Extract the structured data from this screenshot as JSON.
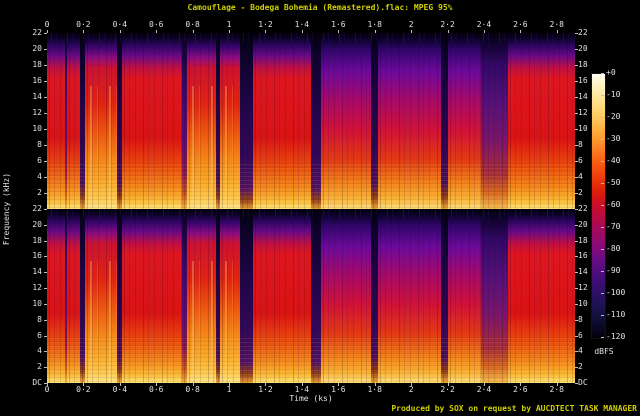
{
  "header": {
    "title": "Camouflage - Bodega Bohemia (Remastered).flac: MPEG 95%",
    "title_color": "#d0d000"
  },
  "footer": {
    "credit": "Produced by SOX on request by AUCDTECT TASK MANAGER",
    "credit_color": "#d0d000"
  },
  "chart_data": {
    "type": "heatmap",
    "subtype": "audio-spectrogram",
    "title": "Camouflage - Bodega Bohemia (Remastered).flac: MPEG 95%",
    "xlabel": "Time (ks)",
    "ylabel": "Frequency (kHz)",
    "channels": [
      "left",
      "right"
    ],
    "x_range_ks": [
      0,
      2.9
    ],
    "y_range_khz": [
      0,
      22
    ],
    "grid": false,
    "legend_position": "right-colorbar",
    "x_ticks": [
      {
        "v": 0.0,
        "label": "0"
      },
      {
        "v": 0.2,
        "label": "0·2"
      },
      {
        "v": 0.4,
        "label": "0·4"
      },
      {
        "v": 0.6,
        "label": "0·6"
      },
      {
        "v": 0.8,
        "label": "0·8"
      },
      {
        "v": 1.0,
        "label": "1"
      },
      {
        "v": 1.2,
        "label": "1·2"
      },
      {
        "v": 1.4,
        "label": "1·4"
      },
      {
        "v": 1.6,
        "label": "1·6"
      },
      {
        "v": 1.8,
        "label": "1·8"
      },
      {
        "v": 2.0,
        "label": "2"
      },
      {
        "v": 2.2,
        "label": "2·2"
      },
      {
        "v": 2.4,
        "label": "2·4"
      },
      {
        "v": 2.6,
        "label": "2·6"
      },
      {
        "v": 2.8,
        "label": "2·8"
      }
    ],
    "y_ticks_top_plot": [
      "22",
      "20",
      "18",
      "16",
      "14",
      "12",
      "10",
      "8",
      "6",
      "4",
      "2"
    ],
    "y_ticks_bottom_plot": [
      "22",
      "20",
      "18",
      "16",
      "14",
      "12",
      "10",
      "8",
      "6",
      "4",
      "2",
      "DC"
    ],
    "colorbar": {
      "unit": "dBFS",
      "ticks": [
        "+0",
        "-10",
        "-20",
        "-30",
        "-40",
        "-50",
        "-60",
        "-70",
        "-80",
        "-90",
        "-100",
        "-110",
        "-120"
      ],
      "range_db": [
        0,
        -120
      ],
      "gradient": [
        [
          0,
          "#fffef2"
        ],
        [
          3,
          "#fff6cf"
        ],
        [
          8,
          "#ffe9a0"
        ],
        [
          13,
          "#ffd878"
        ],
        [
          17,
          "#ffc65c"
        ],
        [
          21,
          "#ffb040"
        ],
        [
          25,
          "#ff982e"
        ],
        [
          29,
          "#fd7c20"
        ],
        [
          33,
          "#f96014"
        ],
        [
          38,
          "#f2430c"
        ],
        [
          42,
          "#e62b08"
        ],
        [
          46,
          "#d81810"
        ],
        [
          50,
          "#c80d28"
        ],
        [
          54,
          "#b90a42"
        ],
        [
          58,
          "#a80a58"
        ],
        [
          63,
          "#920a6e"
        ],
        [
          67,
          "#7c0b7e"
        ],
        [
          71,
          "#650c82"
        ],
        [
          75,
          "#500d7e"
        ],
        [
          79,
          "#3d0e74"
        ],
        [
          83,
          "#2d1066"
        ],
        [
          88,
          "#1e1152"
        ],
        [
          92,
          "#13103c"
        ],
        [
          96,
          "#0a0824"
        ],
        [
          100,
          "#020208"
        ]
      ]
    },
    "bands": [
      {
        "f0": 0.0,
        "f1": 0.034,
        "style": "red"
      },
      {
        "f0": 0.034,
        "f1": 0.038,
        "style": "gapNarrow"
      },
      {
        "f0": 0.038,
        "f1": 0.0625,
        "style": "red"
      },
      {
        "f0": 0.0625,
        "f1": 0.072,
        "style": "gap"
      },
      {
        "f0": 0.072,
        "f1": 0.133,
        "style": "redHot"
      },
      {
        "f0": 0.133,
        "f1": 0.142,
        "style": "gap"
      },
      {
        "f0": 0.142,
        "f1": 0.256,
        "style": "red"
      },
      {
        "f0": 0.256,
        "f1": 0.265,
        "style": "gapNarrow"
      },
      {
        "f0": 0.265,
        "f1": 0.32,
        "style": "redHot"
      },
      {
        "f0": 0.32,
        "f1": 0.328,
        "style": "gap"
      },
      {
        "f0": 0.328,
        "f1": 0.366,
        "style": "redHot"
      },
      {
        "f0": 0.366,
        "f1": 0.39,
        "style": "gapWide"
      },
      {
        "f0": 0.39,
        "f1": 0.5,
        "style": "red"
      },
      {
        "f0": 0.5,
        "f1": 0.519,
        "style": "gapWide"
      },
      {
        "f0": 0.519,
        "f1": 0.614,
        "style": "magenta"
      },
      {
        "f0": 0.614,
        "f1": 0.627,
        "style": "gap"
      },
      {
        "f0": 0.627,
        "f1": 0.746,
        "style": "magenta"
      },
      {
        "f0": 0.746,
        "f1": 0.76,
        "style": "gap"
      },
      {
        "f0": 0.76,
        "f1": 0.822,
        "style": "magenta"
      },
      {
        "f0": 0.822,
        "f1": 0.873,
        "style": "purpleQuiet"
      },
      {
        "f0": 0.873,
        "f1": 1.0,
        "style": "red"
      }
    ],
    "styles": {
      "red": {
        "hot": false,
        "stops": [
          [
            0,
            "#03000a"
          ],
          [
            3,
            "#0b0226"
          ],
          [
            7,
            "#2b0560"
          ],
          [
            13,
            "#6a0a86"
          ],
          [
            20,
            "#c01040"
          ],
          [
            26,
            "#dd1620"
          ],
          [
            60,
            "#d91414"
          ],
          [
            76,
            "#ea4c0e"
          ],
          [
            88,
            "#f58a1c"
          ],
          [
            95,
            "#fcb833"
          ],
          [
            99,
            "#ffdc6a"
          ],
          [
            100,
            "#ffe787"
          ]
        ]
      },
      "redHot": {
        "hot": true,
        "stops": [
          [
            0,
            "#03000a"
          ],
          [
            3,
            "#0c0228"
          ],
          [
            8,
            "#3a0570"
          ],
          [
            14,
            "#8c0c80"
          ],
          [
            20,
            "#cc1230"
          ],
          [
            40,
            "#e02312"
          ],
          [
            58,
            "#ee5a10"
          ],
          [
            74,
            "#f68c1a"
          ],
          [
            86,
            "#fcae2c"
          ],
          [
            94,
            "#ffc94e"
          ],
          [
            100,
            "#ffe98e"
          ]
        ]
      },
      "magenta": {
        "hot": false,
        "stops": [
          [
            0,
            "#03000a"
          ],
          [
            4,
            "#0d0230"
          ],
          [
            10,
            "#33066e"
          ],
          [
            22,
            "#6d0a9a"
          ],
          [
            38,
            "#a50a68"
          ],
          [
            55,
            "#cf1238"
          ],
          [
            72,
            "#e23a14"
          ],
          [
            85,
            "#f2801a"
          ],
          [
            94,
            "#fbb335"
          ],
          [
            100,
            "#ffe080"
          ]
        ]
      },
      "gap": {
        "hot": false,
        "stops": [
          [
            0,
            "#020008"
          ],
          [
            10,
            "#0a0224"
          ],
          [
            35,
            "#1c0442"
          ],
          [
            65,
            "#2e0752"
          ],
          [
            85,
            "#4b0f62"
          ],
          [
            93,
            "#8a3a18"
          ],
          [
            100,
            "#f0a83a"
          ]
        ]
      },
      "gapNarrow": {
        "hot": false,
        "stops": [
          [
            0,
            "#04010e"
          ],
          [
            8,
            "#140336"
          ],
          [
            30,
            "#3a0768"
          ],
          [
            60,
            "#5c0c74"
          ],
          [
            80,
            "#8c1650"
          ],
          [
            92,
            "#cc5a18"
          ],
          [
            100,
            "#f7b542"
          ]
        ]
      },
      "gapWide": {
        "hot": false,
        "stops": [
          [
            0,
            "#020008"
          ],
          [
            12,
            "#0c0228"
          ],
          [
            40,
            "#200548"
          ],
          [
            70,
            "#320858"
          ],
          [
            88,
            "#541364"
          ],
          [
            95,
            "#94421a"
          ],
          [
            100,
            "#eca336"
          ]
        ]
      },
      "purpleQuiet": {
        "hot": false,
        "stops": [
          [
            0,
            "#03000c"
          ],
          [
            6,
            "#11032e"
          ],
          [
            18,
            "#330866"
          ],
          [
            40,
            "#571078"
          ],
          [
            62,
            "#7c1668"
          ],
          [
            80,
            "#a82c38"
          ],
          [
            91,
            "#d96a1e"
          ],
          [
            100,
            "#f8c052"
          ]
        ]
      }
    }
  }
}
